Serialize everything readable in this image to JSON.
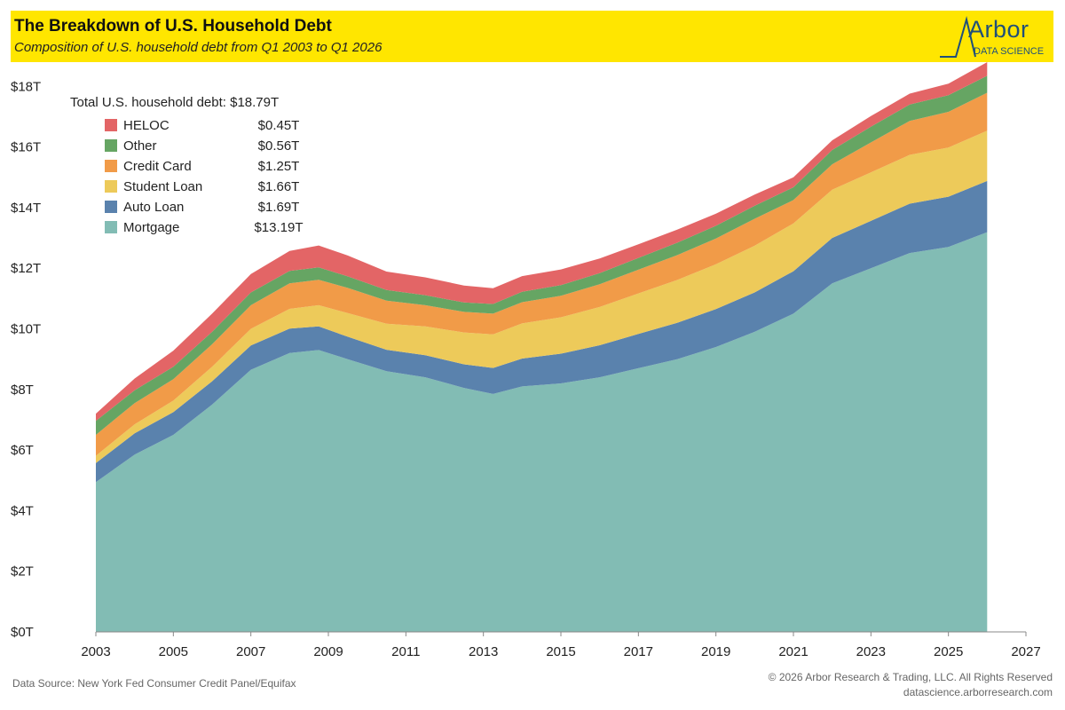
{
  "header": {
    "title": "The Breakdown of U.S. Household Debt",
    "subtitle": "Composition of U.S. household debt from Q1 2003 to Q1 2026"
  },
  "logo": {
    "name": "Arbor",
    "subtitle": "DATA SCIENCE",
    "color": "#1f4f7a"
  },
  "footer": {
    "source": "Data Source: New York Fed Consumer Credit Panel/Equifax",
    "copyright": "© 2026 Arbor Research & Trading, LLC. All Rights Reserved",
    "website": "datascience.arborresearch.com"
  },
  "chart_data": {
    "type": "area",
    "stacked": true,
    "title": "The Breakdown of U.S. Household Debt",
    "subtitle": "Composition of U.S. household debt from Q1 2003 to Q1 2026",
    "xlim": [
      2003,
      2027
    ],
    "ylim": [
      0,
      18.8
    ],
    "x_ticks": [
      2003,
      2005,
      2007,
      2009,
      2011,
      2013,
      2015,
      2017,
      2019,
      2021,
      2023,
      2025,
      2027
    ],
    "y_ticks": [
      0,
      2,
      4,
      6,
      8,
      10,
      12,
      14,
      16,
      18
    ],
    "y_tick_labels": [
      "$0T",
      "$2T",
      "$4T",
      "$6T",
      "$8T",
      "$10T",
      "$12T",
      "$14T",
      "$16T",
      "$18T"
    ],
    "grid": false,
    "legend_position": "top-left",
    "legend_total_label": "Total U.S. household debt: $18.79T",
    "x": [
      2003.0,
      2004.0,
      2005.0,
      2006.0,
      2007.0,
      2008.0,
      2008.75,
      2009.5,
      2010.5,
      2011.5,
      2012.5,
      2013.25,
      2014.0,
      2015.0,
      2016.0,
      2017.0,
      2018.0,
      2019.0,
      2020.0,
      2021.0,
      2022.0,
      2023.0,
      2024.0,
      2025.0,
      2026.0
    ],
    "series": [
      {
        "name": "Mortgage",
        "value_label": "$13.19T",
        "color": "#82bcb4",
        "values": [
          4.94,
          5.85,
          6.5,
          7.5,
          8.65,
          9.2,
          9.3,
          9.0,
          8.6,
          8.4,
          8.05,
          7.85,
          8.1,
          8.2,
          8.4,
          8.7,
          9.0,
          9.4,
          9.9,
          10.5,
          11.5,
          12.0,
          12.5,
          12.7,
          13.19
        ]
      },
      {
        "name": "Auto Loan",
        "value_label": "$1.69T",
        "color": "#5a82ad",
        "values": [
          0.63,
          0.7,
          0.75,
          0.77,
          0.8,
          0.81,
          0.78,
          0.74,
          0.71,
          0.73,
          0.78,
          0.86,
          0.92,
          0.98,
          1.06,
          1.13,
          1.2,
          1.25,
          1.3,
          1.4,
          1.5,
          1.56,
          1.63,
          1.66,
          1.69
        ]
      },
      {
        "name": "Student Loan",
        "value_label": "$1.66T",
        "color": "#edca5a",
        "values": [
          0.24,
          0.3,
          0.38,
          0.48,
          0.55,
          0.65,
          0.7,
          0.78,
          0.86,
          0.95,
          1.05,
          1.11,
          1.16,
          1.2,
          1.26,
          1.34,
          1.41,
          1.48,
          1.54,
          1.58,
          1.59,
          1.6,
          1.61,
          1.62,
          1.66
        ]
      },
      {
        "name": "Credit Card",
        "value_label": "$1.25T",
        "color": "#f19b48",
        "values": [
          0.69,
          0.7,
          0.71,
          0.74,
          0.78,
          0.84,
          0.84,
          0.83,
          0.76,
          0.7,
          0.68,
          0.68,
          0.7,
          0.71,
          0.75,
          0.78,
          0.82,
          0.85,
          0.89,
          0.77,
          0.84,
          0.99,
          1.12,
          1.18,
          1.25
        ]
      },
      {
        "name": "Other",
        "value_label": "$0.56T",
        "color": "#66a563",
        "values": [
          0.46,
          0.42,
          0.41,
          0.41,
          0.42,
          0.41,
          0.41,
          0.38,
          0.35,
          0.33,
          0.31,
          0.32,
          0.34,
          0.35,
          0.37,
          0.39,
          0.41,
          0.42,
          0.43,
          0.42,
          0.47,
          0.52,
          0.54,
          0.55,
          0.56
        ]
      },
      {
        "name": "HELOC",
        "value_label": "$0.45T",
        "color": "#e36566",
        "values": [
          0.24,
          0.39,
          0.53,
          0.6,
          0.61,
          0.66,
          0.72,
          0.69,
          0.61,
          0.59,
          0.56,
          0.52,
          0.52,
          0.52,
          0.48,
          0.45,
          0.43,
          0.4,
          0.37,
          0.33,
          0.32,
          0.35,
          0.36,
          0.38,
          0.45
        ]
      }
    ]
  }
}
